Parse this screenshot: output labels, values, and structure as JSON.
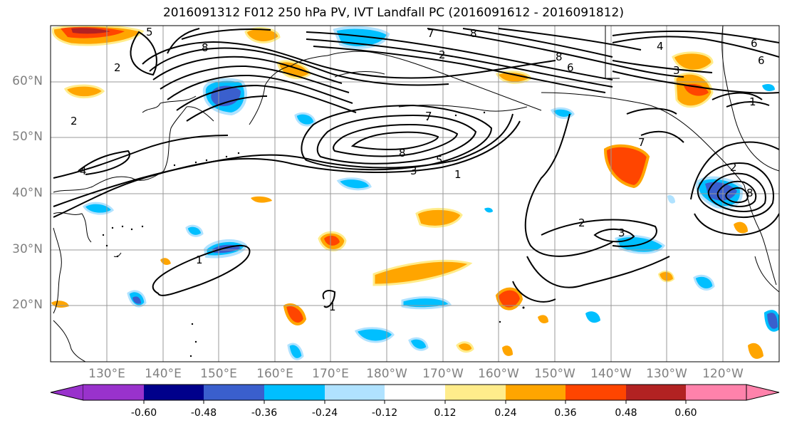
{
  "title": "2016091312 F012 250 hPa PV, IVT Landfall PC (2016091612 - 2016091812)",
  "lat_labels": [
    "60°N",
    "50°N",
    "40°N",
    "30°N",
    "20°N"
  ],
  "lon_labels": [
    "130°E",
    "140°E",
    "150°E",
    "160°E",
    "170°E",
    "180°W",
    "170°W",
    "160°W",
    "150°W",
    "140°W",
    "130°W",
    "120°W"
  ],
  "colorbar": {
    "ticks": [
      "-0.60",
      "-0.48",
      "-0.36",
      "-0.24",
      "-0.12",
      "0.12",
      "0.24",
      "0.36",
      "0.48",
      "0.60"
    ],
    "colors": [
      "#9932CC",
      "#00008B",
      "#3A5FCD",
      "#00BFFF",
      "#B0E2FF",
      "#FFFFFF",
      "#FFEC8B",
      "#FFA500",
      "#FF4500",
      "#B22222",
      "#FF82AB"
    ]
  },
  "contour_labels": [
    "1",
    "2",
    "3",
    "4",
    "5",
    "6",
    "7",
    "8"
  ]
}
